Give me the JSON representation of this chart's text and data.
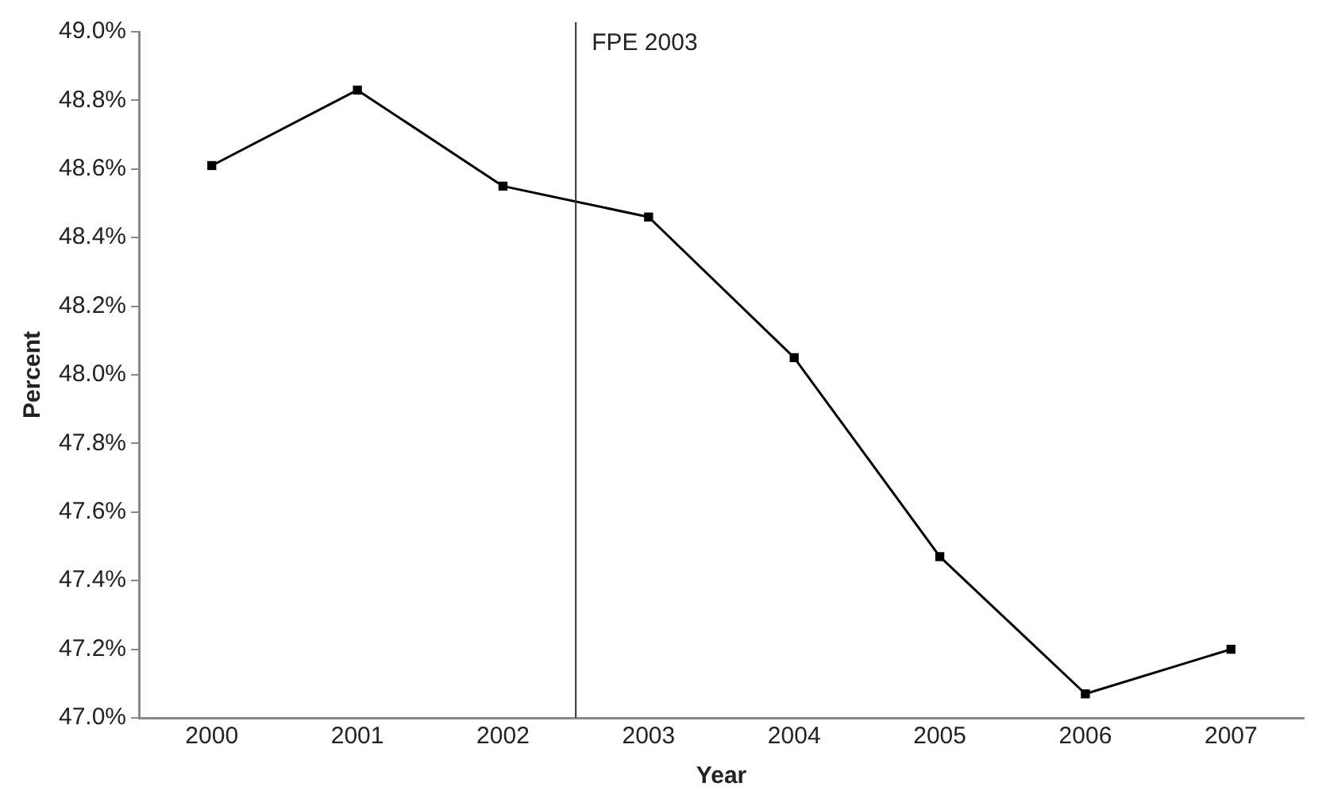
{
  "chart_data": {
    "type": "line",
    "xlabel": "Year",
    "ylabel": "Percent",
    "x": [
      2000,
      2001,
      2002,
      2003,
      2004,
      2005,
      2006,
      2007
    ],
    "series": [
      {
        "color": "#000000",
        "values": [
          48.61,
          48.83,
          48.55,
          48.46,
          48.05,
          47.47,
          47.07,
          47.2
        ]
      }
    ],
    "xlim": [
      1999.5,
      2007.5
    ],
    "xticks": [
      2000,
      2001,
      2002,
      2003,
      2004,
      2005,
      2006,
      2007
    ],
    "ylim": [
      47,
      49
    ],
    "yticks": [
      {
        "value": 47,
        "label": "47.0%"
      },
      {
        "value": 47.2,
        "label": "47.2%"
      },
      {
        "value": 47.4,
        "label": "47.4%"
      },
      {
        "value": 47.6,
        "label": "47.6%"
      },
      {
        "value": 47.8,
        "label": "47.8%"
      },
      {
        "value": 48,
        "label": "48.0%"
      },
      {
        "value": 48.2,
        "label": "48.2%"
      },
      {
        "value": 48.4,
        "label": "48.4%"
      },
      {
        "value": 48.6,
        "label": "48.6%"
      },
      {
        "value": 48.8,
        "label": "48.8%"
      },
      {
        "value": 49,
        "label": "49.0%"
      }
    ],
    "ref_lines": [
      {
        "axis": "x",
        "value": 2002.5,
        "label": "FPE 2003",
        "color": "#333333"
      }
    ],
    "grid": false,
    "legend": false,
    "marker": "square",
    "line_style": "solid"
  }
}
